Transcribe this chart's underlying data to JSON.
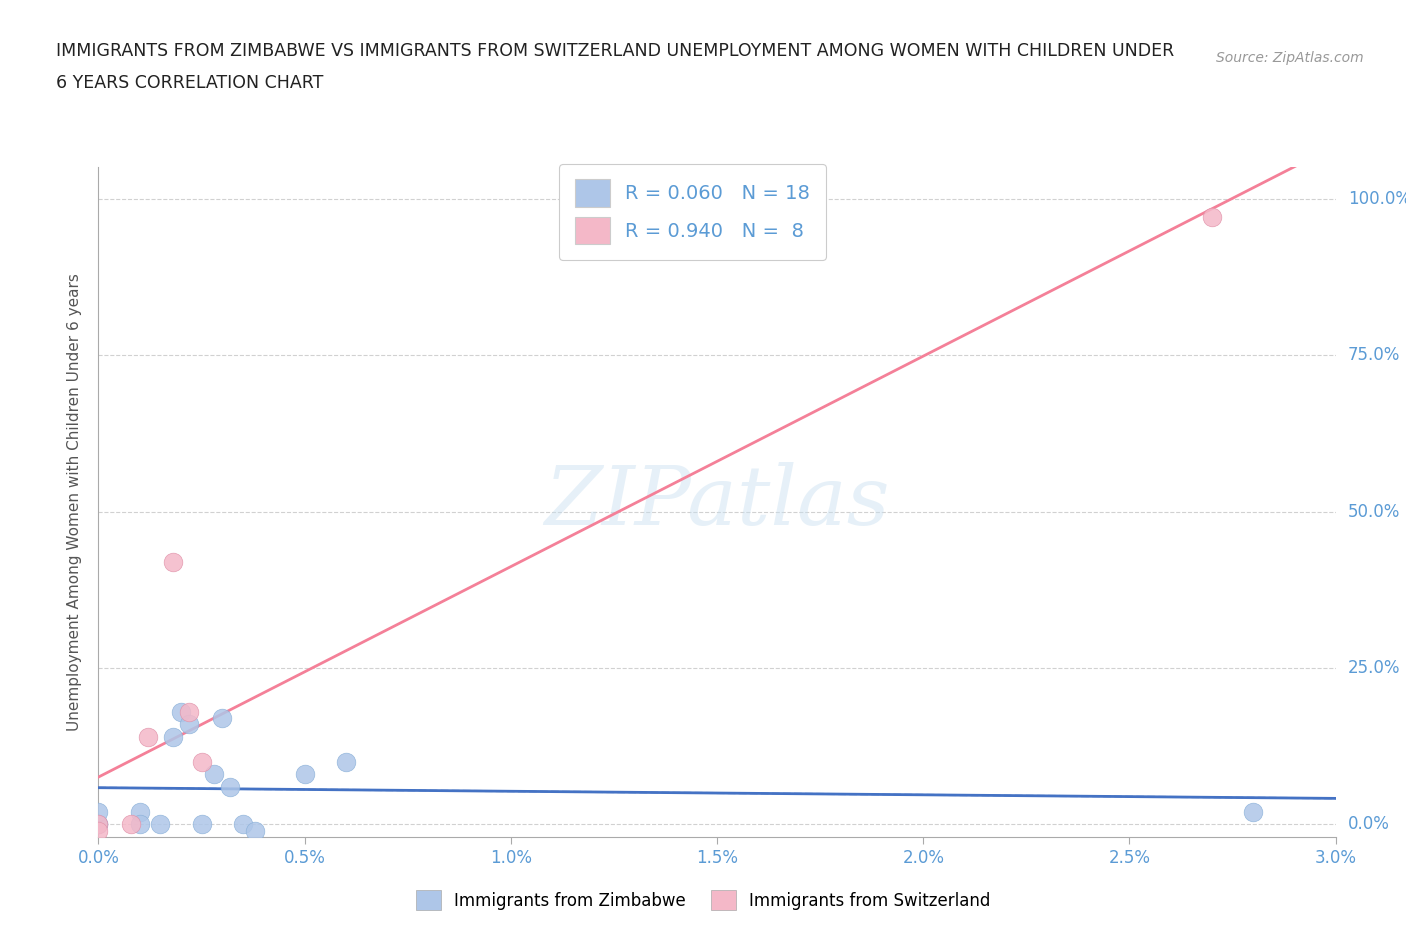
{
  "title_line1": "IMMIGRANTS FROM ZIMBABWE VS IMMIGRANTS FROM SWITZERLAND UNEMPLOYMENT AMONG WOMEN WITH CHILDREN UNDER",
  "title_line2": "6 YEARS CORRELATION CHART",
  "source": "Source: ZipAtlas.com",
  "xlabel_ticks": [
    "0.0%",
    "0.5%",
    "1.0%",
    "1.5%",
    "2.0%",
    "2.5%",
    "3.0%"
  ],
  "ylabel_ticks_right": [
    "0.0%",
    "25.0%",
    "50.0%",
    "75.0%",
    "100.0%"
  ],
  "xlim": [
    0.0,
    0.03
  ],
  "ylim": [
    -0.02,
    1.05
  ],
  "watermark": "ZIPatlas",
  "legend_label1": "R = 0.060   N = 18",
  "legend_label2": "R = 0.940   N =  8",
  "legend_color1": "#aec6e8",
  "legend_color2": "#f4b8c8",
  "line_color1": "#4472c4",
  "line_color2": "#f48098",
  "scatter_color1": "#aec6e8",
  "scatter_color2": "#f4b8c8",
  "zimbabwe_x": [
    0.0,
    0.0,
    0.0,
    0.001,
    0.001,
    0.0015,
    0.0018,
    0.002,
    0.0022,
    0.0025,
    0.0028,
    0.003,
    0.0032,
    0.0035,
    0.0038,
    0.005,
    0.006,
    0.028
  ],
  "zimbabwe_y": [
    0.0,
    0.0,
    0.02,
    0.02,
    0.0,
    0.0,
    0.14,
    0.18,
    0.16,
    0.0,
    0.08,
    0.17,
    0.06,
    0.0,
    -0.01,
    0.08,
    0.1,
    0.02
  ],
  "switzerland_x": [
    0.0,
    0.0,
    0.0008,
    0.0012,
    0.0018,
    0.0022,
    0.0025,
    0.027
  ],
  "switzerland_y": [
    0.0,
    -0.01,
    0.0,
    0.14,
    0.42,
    0.18,
    0.1,
    0.97
  ],
  "r1": 0.06,
  "r2": 0.94,
  "n1": 18,
  "n2": 8,
  "grid_color": "#cccccc",
  "bg_color": "#ffffff",
  "title_color": "#222222",
  "tick_label_color": "#5b9bd5",
  "axis_label": "Unemployment Among Women with Children Under 6 years",
  "bottom_legend_label1": "Immigrants from Zimbabwe",
  "bottom_legend_label2": "Immigrants from Switzerland"
}
